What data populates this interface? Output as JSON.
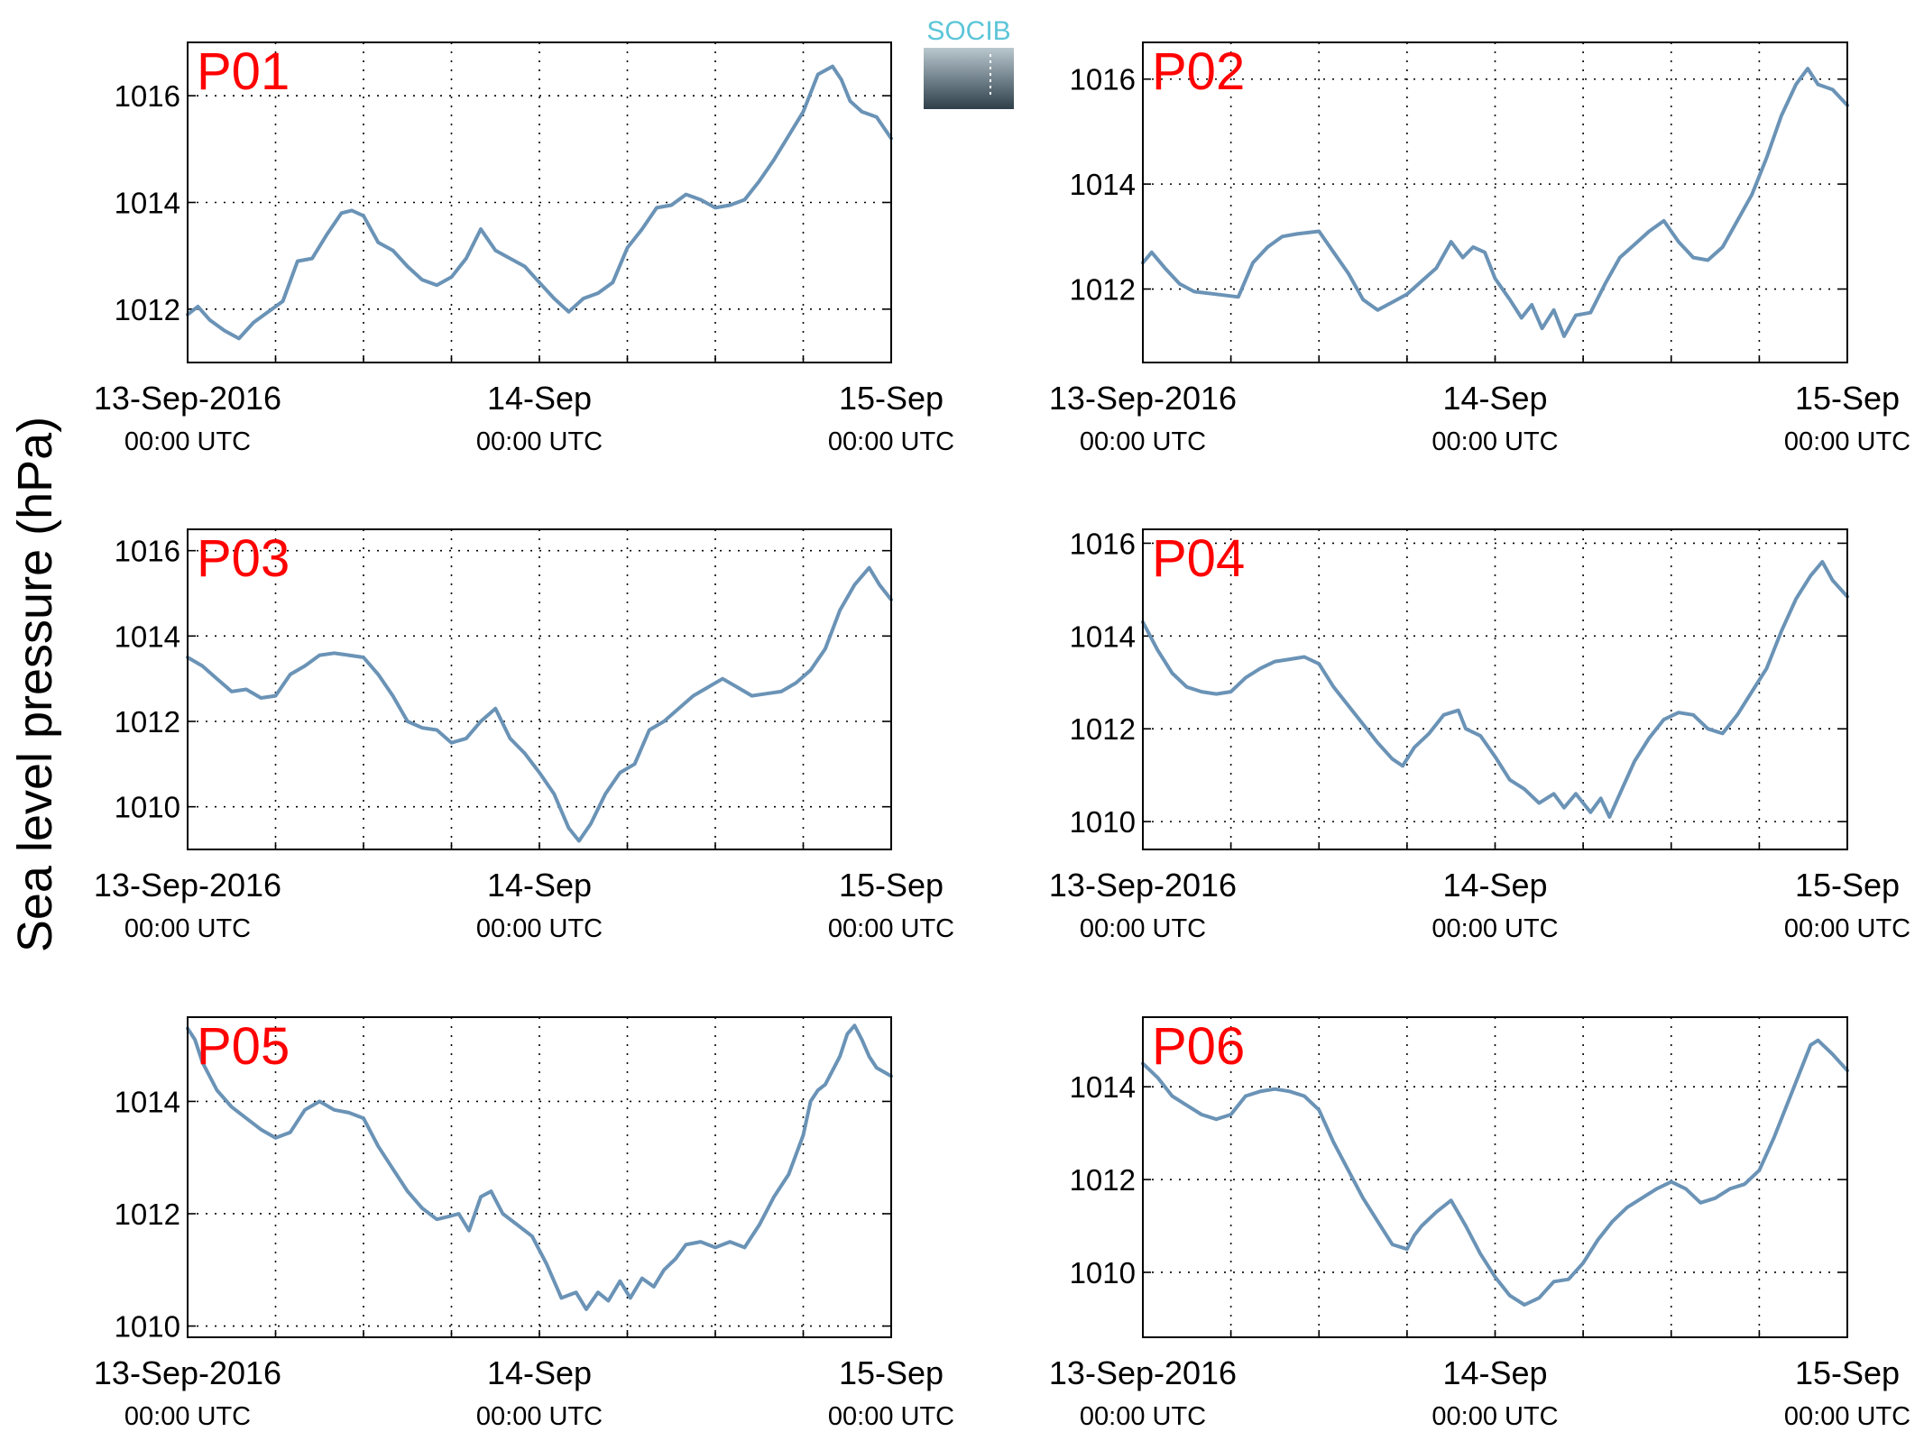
{
  "figure": {
    "ylabel": "Sea level pressure (hPa)",
    "logo_text": "SOCIB",
    "line_color": "#6a93b6",
    "label_color": "#ff0000",
    "grid": "dotted",
    "x_ticks": [
      {
        "line1": "13-Sep-2016",
        "line2": "00:00 UTC",
        "hour": 0
      },
      {
        "line1": "14-Sep",
        "line2": "00:00 UTC",
        "hour": 24
      },
      {
        "line1": "15-Sep",
        "line2": "00:00 UTC",
        "hour": 48
      }
    ]
  },
  "chart_data": [
    {
      "type": "line",
      "title": "P01",
      "xlim": [
        0,
        48
      ],
      "ylim": [
        1011,
        1017
      ],
      "yticks": [
        1012,
        1014,
        1016
      ],
      "x_unit": "hours since 13-Sep-2016 00:00 UTC",
      "series": [
        {
          "x": [
            0,
            0.7,
            1.5,
            2.5,
            3.5,
            4.5,
            5.5,
            6.5,
            7.5,
            8.5,
            9.5,
            10.5,
            11.2,
            12,
            13,
            14,
            15,
            16,
            17,
            18,
            19,
            20,
            21,
            22,
            23,
            24,
            25,
            26,
            27,
            28,
            29,
            30,
            31,
            32,
            33,
            34,
            35,
            36,
            37,
            38,
            39,
            40,
            41,
            42,
            43,
            44,
            44.6,
            45.2,
            46,
            47,
            48
          ],
          "y": [
            1011.9,
            1012.05,
            1011.8,
            1011.6,
            1011.45,
            1011.75,
            1011.95,
            1012.15,
            1012.9,
            1012.95,
            1013.4,
            1013.8,
            1013.85,
            1013.75,
            1013.25,
            1013.1,
            1012.8,
            1012.55,
            1012.45,
            1012.6,
            1012.95,
            1013.5,
            1013.1,
            1012.95,
            1012.8,
            1012.5,
            1012.2,
            1011.95,
            1012.2,
            1012.3,
            1012.5,
            1013.15,
            1013.5,
            1013.9,
            1013.95,
            1014.15,
            1014.05,
            1013.9,
            1013.95,
            1014.05,
            1014.4,
            1014.8,
            1015.25,
            1015.7,
            1016.4,
            1016.55,
            1016.3,
            1015.9,
            1015.7,
            1015.6,
            1015.2
          ]
        }
      ]
    },
    {
      "type": "line",
      "title": "P02",
      "xlim": [
        0,
        48
      ],
      "ylim": [
        1010.6,
        1016.7
      ],
      "yticks": [
        1012,
        1014,
        1016
      ],
      "x_unit": "hours since 13-Sep-2016 00:00 UTC",
      "series": [
        {
          "x": [
            0,
            0.6,
            1.5,
            2.5,
            3.5,
            5,
            6.5,
            7.5,
            8.5,
            9.5,
            10.5,
            12,
            13,
            14,
            15,
            16,
            17,
            18,
            19,
            20,
            21,
            21.8,
            22.5,
            23.3,
            24,
            25,
            25.8,
            26.5,
            27.2,
            28,
            28.7,
            29.5,
            30.5,
            31.5,
            32.5,
            33.5,
            34.5,
            35.5,
            36.5,
            37.5,
            38.5,
            39.5,
            40.5,
            41.5,
            42.5,
            43.5,
            44.5,
            45.3,
            46,
            47,
            48
          ],
          "y": [
            1012.5,
            1012.7,
            1012.4,
            1012.1,
            1011.95,
            1011.9,
            1011.85,
            1012.5,
            1012.8,
            1013.0,
            1013.05,
            1013.1,
            1012.7,
            1012.3,
            1011.8,
            1011.6,
            1011.75,
            1011.9,
            1012.15,
            1012.4,
            1012.9,
            1012.6,
            1012.8,
            1012.7,
            1012.2,
            1011.8,
            1011.45,
            1011.7,
            1011.25,
            1011.6,
            1011.1,
            1011.5,
            1011.55,
            1012.1,
            1012.6,
            1012.85,
            1013.1,
            1013.3,
            1012.9,
            1012.6,
            1012.55,
            1012.8,
            1013.3,
            1013.8,
            1014.5,
            1015.3,
            1015.9,
            1016.2,
            1015.9,
            1015.8,
            1015.5
          ]
        }
      ]
    },
    {
      "type": "line",
      "title": "P03",
      "xlim": [
        0,
        48
      ],
      "ylim": [
        1009,
        1016.5
      ],
      "yticks": [
        1010,
        1012,
        1014,
        1016
      ],
      "x_unit": "hours since 13-Sep-2016 00:00 UTC",
      "series": [
        {
          "x": [
            0,
            1,
            2,
            3,
            4,
            5,
            6,
            7,
            8,
            9,
            10,
            11,
            12,
            13,
            14,
            15,
            16,
            17,
            18,
            19,
            20,
            21,
            22,
            23,
            24,
            25,
            26,
            26.7,
            27.5,
            28.5,
            29.5,
            30.5,
            31.5,
            32.5,
            33.5,
            34.5,
            35.5,
            36.5,
            37.5,
            38.5,
            39.5,
            40.5,
            41.5,
            42.5,
            43.5,
            44.5,
            45.5,
            46.5,
            47.2,
            48
          ],
          "y": [
            1013.5,
            1013.3,
            1013.0,
            1012.7,
            1012.75,
            1012.55,
            1012.6,
            1013.1,
            1013.3,
            1013.55,
            1013.6,
            1013.55,
            1013.5,
            1013.1,
            1012.6,
            1012.0,
            1011.85,
            1011.8,
            1011.5,
            1011.6,
            1012.0,
            1012.3,
            1011.6,
            1011.25,
            1010.8,
            1010.3,
            1009.5,
            1009.2,
            1009.6,
            1010.3,
            1010.8,
            1011.0,
            1011.8,
            1012.0,
            1012.3,
            1012.6,
            1012.8,
            1013.0,
            1012.8,
            1012.6,
            1012.65,
            1012.7,
            1012.9,
            1013.2,
            1013.7,
            1014.6,
            1015.2,
            1015.6,
            1015.2,
            1014.85
          ]
        }
      ]
    },
    {
      "type": "line",
      "title": "P04",
      "xlim": [
        0,
        48
      ],
      "ylim": [
        1009.4,
        1016.3
      ],
      "yticks": [
        1010,
        1012,
        1014,
        1016
      ],
      "x_unit": "hours since 13-Sep-2016 00:00 UTC",
      "series": [
        {
          "x": [
            0,
            1,
            2,
            3,
            4,
            5,
            6,
            7,
            8,
            9,
            10,
            11,
            12,
            13,
            14,
            15,
            16,
            17,
            17.7,
            18.5,
            19.5,
            20.5,
            21.5,
            22,
            23,
            24,
            25,
            26,
            27,
            28,
            28.7,
            29.5,
            30.5,
            31.2,
            31.8,
            32.5,
            33.5,
            34.5,
            35.5,
            36.5,
            37.5,
            38.5,
            39.5,
            40.5,
            41.5,
            42.5,
            43.5,
            44.5,
            45.5,
            46.3,
            47,
            48
          ],
          "y": [
            1014.3,
            1013.7,
            1013.2,
            1012.9,
            1012.8,
            1012.75,
            1012.8,
            1013.1,
            1013.3,
            1013.45,
            1013.5,
            1013.55,
            1013.4,
            1012.9,
            1012.5,
            1012.1,
            1011.7,
            1011.35,
            1011.2,
            1011.6,
            1011.9,
            1012.3,
            1012.4,
            1012.0,
            1011.85,
            1011.4,
            1010.9,
            1010.7,
            1010.4,
            1010.6,
            1010.3,
            1010.6,
            1010.2,
            1010.5,
            1010.1,
            1010.6,
            1011.3,
            1011.8,
            1012.2,
            1012.35,
            1012.3,
            1012.0,
            1011.9,
            1012.3,
            1012.8,
            1013.3,
            1014.1,
            1014.8,
            1015.3,
            1015.6,
            1015.2,
            1014.85
          ]
        }
      ]
    },
    {
      "type": "line",
      "title": "P05",
      "xlim": [
        0,
        48
      ],
      "ylim": [
        1009.8,
        1015.5
      ],
      "yticks": [
        1010,
        1012,
        1014
      ],
      "x_unit": "hours since 13-Sep-2016 00:00 UTC",
      "series": [
        {
          "x": [
            0,
            0.5,
            1,
            2,
            3,
            4,
            5,
            6,
            7,
            8,
            9,
            10,
            11,
            12,
            13,
            14,
            15,
            16,
            17,
            17.8,
            18.5,
            19.2,
            20,
            20.7,
            21.5,
            22.5,
            23.5,
            24.5,
            25.5,
            26.5,
            27.2,
            28,
            28.7,
            29.5,
            30.2,
            31,
            31.8,
            32.5,
            33.3,
            34,
            35,
            36,
            37,
            38,
            38.5,
            39,
            40,
            41,
            42,
            42.5,
            43,
            43.5,
            44.5,
            45,
            45.5,
            46,
            46.5,
            47,
            48
          ],
          "y": [
            1015.3,
            1015.1,
            1014.7,
            1014.2,
            1013.9,
            1013.7,
            1013.5,
            1013.35,
            1013.45,
            1013.85,
            1014.0,
            1013.85,
            1013.8,
            1013.7,
            1013.2,
            1012.8,
            1012.4,
            1012.1,
            1011.9,
            1011.95,
            1012.0,
            1011.7,
            1012.3,
            1012.4,
            1012.0,
            1011.8,
            1011.6,
            1011.1,
            1010.5,
            1010.6,
            1010.3,
            1010.6,
            1010.45,
            1010.8,
            1010.5,
            1010.85,
            1010.7,
            1011.0,
            1011.2,
            1011.45,
            1011.5,
            1011.4,
            1011.5,
            1011.4,
            1011.6,
            1011.8,
            1012.3,
            1012.7,
            1013.4,
            1014.0,
            1014.2,
            1014.3,
            1014.8,
            1015.2,
            1015.35,
            1015.1,
            1014.8,
            1014.6,
            1014.45
          ]
        }
      ]
    },
    {
      "type": "line",
      "title": "P06",
      "xlim": [
        0,
        48
      ],
      "ylim": [
        1008.6,
        1015.5
      ],
      "yticks": [
        1010,
        1012,
        1014
      ],
      "x_unit": "hours since 13-Sep-2016 00:00 UTC",
      "series": [
        {
          "x": [
            0,
            1,
            2,
            3,
            4,
            5,
            6,
            7,
            8,
            9,
            10,
            11,
            12,
            13,
            14,
            15,
            16,
            17,
            18,
            18.5,
            19,
            20,
            21,
            22,
            23,
            24,
            25,
            26,
            27,
            28,
            29,
            30,
            31,
            32,
            33,
            34,
            35,
            36,
            37,
            38,
            39,
            40,
            41,
            42,
            43,
            44,
            45,
            45.5,
            46,
            47,
            48
          ],
          "y": [
            1014.5,
            1014.2,
            1013.8,
            1013.6,
            1013.4,
            1013.3,
            1013.4,
            1013.8,
            1013.9,
            1013.95,
            1013.9,
            1013.8,
            1013.5,
            1012.8,
            1012.2,
            1011.6,
            1011.1,
            1010.6,
            1010.5,
            1010.8,
            1011.0,
            1011.3,
            1011.55,
            1011.0,
            1010.4,
            1009.9,
            1009.5,
            1009.3,
            1009.45,
            1009.8,
            1009.85,
            1010.2,
            1010.7,
            1011.1,
            1011.4,
            1011.6,
            1011.8,
            1011.95,
            1011.8,
            1011.5,
            1011.6,
            1011.8,
            1011.9,
            1012.2,
            1012.9,
            1013.7,
            1014.5,
            1014.9,
            1015.0,
            1014.7,
            1014.35
          ]
        }
      ]
    }
  ]
}
